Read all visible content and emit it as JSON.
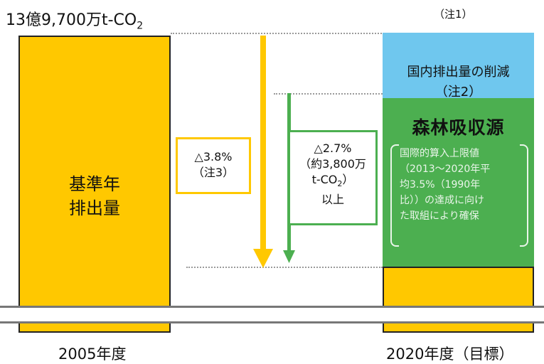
{
  "header": {
    "total_prefix": "13億9,700万t-CO",
    "total_sub": "2",
    "note1": "（注1）"
  },
  "base_bar": {
    "label_line1": "基準年",
    "label_line2": "排出量"
  },
  "reduction_total": {
    "line1": "△3.8%",
    "line2": "（注3）"
  },
  "forest_reduction": {
    "line1": "△2.7%",
    "line2": "（約3,800万",
    "line3_prefix": "t-CO",
    "line3_sub": "2",
    "line3_suffix": "）",
    "line4": "以上"
  },
  "domestic": {
    "line1": "国内排出量の削減",
    "line2": "（注2）"
  },
  "forest": {
    "title": "森林吸収源",
    "note_line1": "国際的算入上限値",
    "note_line2": "（2013～2020年平",
    "note_line3": "均3.5%（1990年",
    "note_line4": "比））の達成に向け",
    "note_line5": "た取組により確保"
  },
  "years": {
    "left": "2005年度",
    "right": "2020年度（目標）"
  },
  "colors": {
    "yellow": "#ffc800",
    "green": "#4caf50",
    "blue": "#6fc7ee"
  }
}
